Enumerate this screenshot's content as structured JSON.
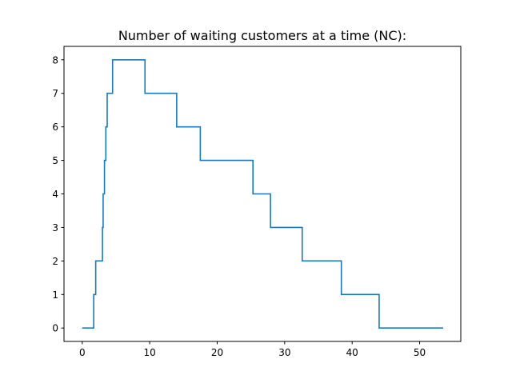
{
  "chart_data": {
    "type": "line",
    "step": "post",
    "title": "Number of waiting customers at a time (NC):",
    "xlabel": "",
    "ylabel": "",
    "xlim": [
      -2.7,
      56.1
    ],
    "ylim": [
      -0.4,
      8.4
    ],
    "xticks": [
      0,
      10,
      20,
      30,
      40,
      50
    ],
    "yticks": [
      0,
      1,
      2,
      3,
      4,
      5,
      6,
      7,
      8
    ],
    "grid": false,
    "legend": "none",
    "series": [
      {
        "color": "#1f77b4",
        "x": [
          0,
          1.7,
          2.0,
          3.0,
          3.1,
          3.3,
          3.5,
          3.7,
          4.5,
          9.3,
          14.0,
          17.5,
          25.3,
          27.9,
          32.6,
          38.4,
          44.0,
          53.5
        ],
        "y": [
          0,
          1,
          2,
          3,
          4,
          5,
          6,
          7,
          8,
          7,
          6,
          5,
          4,
          3,
          2,
          1,
          0,
          0
        ]
      }
    ]
  }
}
